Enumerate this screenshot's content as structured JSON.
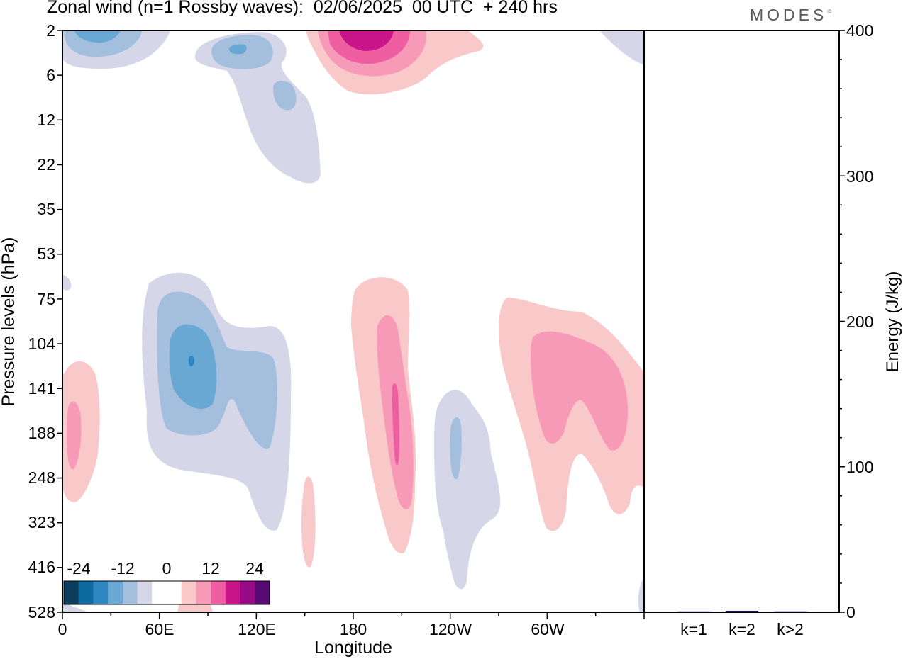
{
  "title": "Zonal wind (n=1 Rossby waves):  02/06/2025  00 UTC  + 240 hrs",
  "logo_text": "MODES",
  "logo_mark": "©",
  "chart_data": [
    {
      "type": "heatmap",
      "xlabel": "Longitude",
      "ylabel": "Pressure levels (hPa)",
      "x_ticks": [
        "0",
        "60E",
        "120E",
        "180",
        "120W",
        "60W"
      ],
      "y_ticks": [
        "2",
        "6",
        "12",
        "22",
        "35",
        "53",
        "75",
        "104",
        "141",
        "188",
        "248",
        "323",
        "416",
        "528"
      ],
      "x_range": [
        0,
        360
      ],
      "y_log_scale": true,
      "colorbar": {
        "labels": [
          "-24",
          "-12",
          "0",
          "12",
          "24"
        ],
        "colors": [
          "#0c3d5c",
          "#0c6aa0",
          "#2f86c0",
          "#6aa8d4",
          "#a4bede",
          "#d5d7e9",
          "#ffffff",
          "#ffffff",
          "#f9c8c8",
          "#f79ab8",
          "#ee5ea0",
          "#c8168a",
          "#960a86",
          "#570a72"
        ]
      },
      "features": [
        {
          "lon": 20,
          "level": "2",
          "sign": "negative",
          "peak": "-12"
        },
        {
          "lon": 105,
          "level": "4",
          "sign": "negative",
          "peak": "-12"
        },
        {
          "lon": 125,
          "level": "8",
          "sign": "negative",
          "peak": "-8"
        },
        {
          "lon": 185,
          "level": "2",
          "sign": "positive",
          "peak": "16"
        },
        {
          "lon": 5,
          "level": "188",
          "sign": "positive",
          "peak": "8"
        },
        {
          "lon": 75,
          "level": "115",
          "sign": "negative",
          "peak": "-16"
        },
        {
          "lon": 150,
          "level": "323",
          "sign": "positive",
          "peak": "4"
        },
        {
          "lon": 198,
          "level": "170",
          "sign": "positive",
          "peak": "12"
        },
        {
          "lon": 237,
          "level": "200",
          "sign": "negative",
          "peak": "-8"
        },
        {
          "lon": 305,
          "level": "141",
          "sign": "positive",
          "peak": "8"
        }
      ]
    },
    {
      "type": "bar",
      "categories": [
        "k=1",
        "k=2",
        "k>2"
      ],
      "values": [
        0.4,
        1.0,
        0.6
      ],
      "ylabel": "Energy (J/kg)",
      "y_ticks": [
        "0",
        "100",
        "200",
        "300",
        "400"
      ],
      "ylim": [
        0,
        400
      ],
      "bar_color": "#1a1a4a"
    }
  ]
}
